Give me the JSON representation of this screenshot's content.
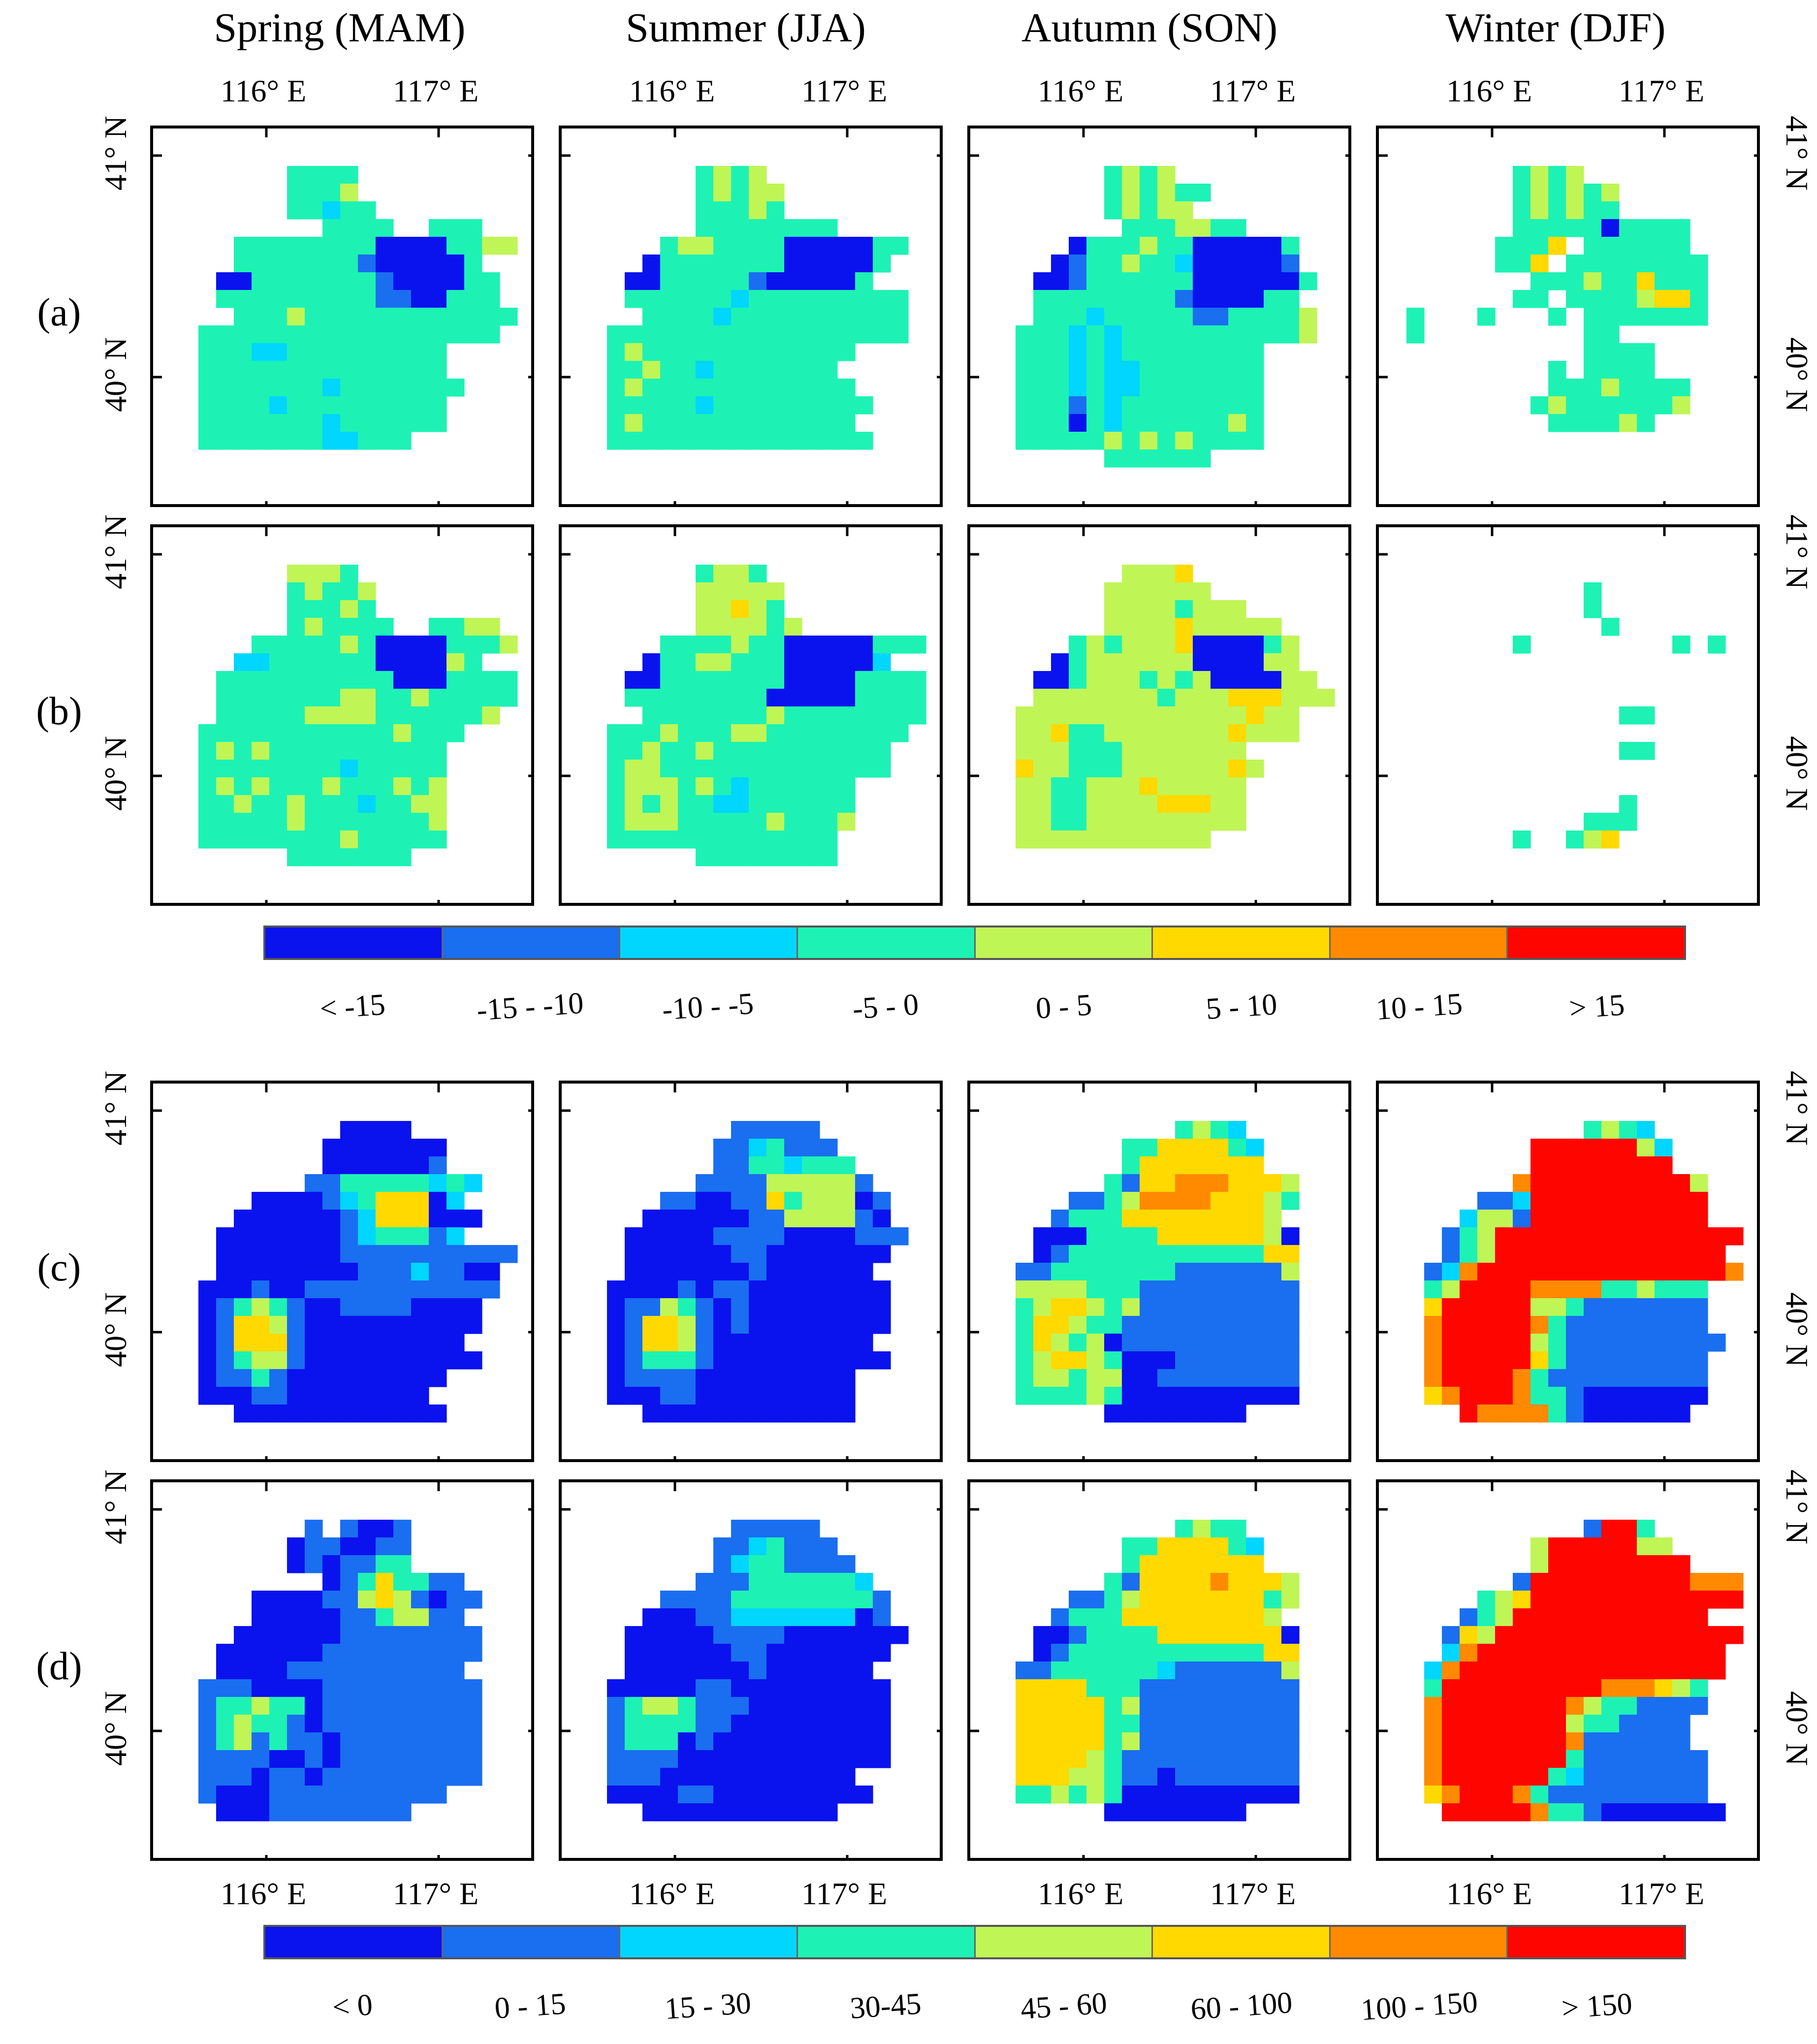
{
  "seasons": [
    "Spring (MAM)",
    "Summer (JJA)",
    "Autumn (SON)",
    "Winter (DJF)"
  ],
  "rows": [
    "(a)",
    "(b)",
    "(c)",
    "(d)"
  ],
  "axes": {
    "lon_ticks": [
      "116° E",
      "117° E"
    ],
    "lat_ticks": [
      "41° N",
      "40° N"
    ]
  },
  "colorbar_top": {
    "colors": [
      "#0a12ee",
      "#1a6ef0",
      "#00d6ff",
      "#1df2b4",
      "#c0f556",
      "#ffd900",
      "#ff8a00",
      "#ff0500"
    ],
    "labels": [
      "< -15",
      "-15 - -10",
      "-10 - -5",
      "-5 - 0",
      "0 - 5",
      "5 - 10",
      "10 - 15",
      "> 15"
    ]
  },
  "colorbar_bottom": {
    "colors": [
      "#0a12ee",
      "#1a6ef0",
      "#00d6ff",
      "#1df2b4",
      "#c0f556",
      "#ffd900",
      "#ff8a00",
      "#ff0500"
    ],
    "labels": [
      "< 0",
      "0 - 15",
      "15 - 30",
      "30-45",
      "45 - 60",
      "60 - 100",
      "100 - 150",
      "> 150"
    ]
  },
  "chart_data": {
    "type": "heatmap",
    "description": "Seasonal gridded maps over the Beijing region; each panel is a 20 x 20 grid; cell values are class indexes into the panel's colorbar (0-7), -1 = no data",
    "grid_size": [
      20,
      20
    ],
    "lon_range": [
      115.35,
      117.5
    ],
    "lat_range": [
      39.45,
      41.15
    ],
    "panels": [
      {
        "row": "(a)",
        "season": "Spring (MAM)",
        "colorbar": "top",
        "palette": [
          "0",
          "1",
          "2",
          "3",
          "4",
          "5",
          "6",
          "7"
        ],
        "rows": [
          "--------------------",
          "-------3333----------",
          "-------3334----------",
          "-------33233---------",
          "---------3333--333---",
          "----3333333300003344-",
          "----33333331000003---",
          "---0033333331000033--",
          "---3333333331100333--",
          "----3334333333333333-",
          "--33333333333333333--",
          "--33322333333333-----",
          "--33333333333333-----",
          "--333333323333333----",
          "--33332333333333-----",
          "--33333332333333-----",
          "--333333322333-------",
          "--------------------",
          "--------------------",
          "--------------------"
        ]
      },
      {
        "row": "(b)",
        "season": "Spring (MAM)",
        "colorbar": "top",
        "palette": [
          "0",
          "1",
          "2",
          "3",
          "4",
          "5",
          "6",
          "7"
        ],
        "rows": [
          "--------------------",
          "-------4443----------",
          "-------34334---------",
          "-------33343---------",
          "-------343333--3344--",
          "-----333334300003334-",
          "----22333333000043---",
          "---33333333330003333-",
          "---33333334433433333-",
          "---3333344443333334--",
          "--333333333334333----",
          "--34343333333333-----",
          "--33333333233333-----",
          "--34343334333434-----",
          "--33433433323344-----",
          "--33333433333334-----",
          "--33333333433333-----",
          "-------3333333-------",
          "--------------------",
          "--------------------"
        ]
      },
      {
        "row": "(c)",
        "season": "Spring (MAM)",
        "colorbar": "bottom",
        "palette": [
          "0",
          "1",
          "2",
          "3",
          "4",
          "5",
          "6",
          "7"
        ],
        "rows": [
          "--------------------",
          "----------0000-------",
          "---------0000000-----",
          "---------0000001-----",
          "--------1133333232---",
          "-----000012355502-----",
          "----00000012555000---",
          "---00000001233312----",
          "---00000001111111111-",
          "---0000000011121100--",
          "--00010011111111111--",
          "--0134310011110000---",
          "--0155410000000000---",
          "--015551000000000----",
          "--0134410000000000---",
          "--01131000000000-----",
          "--0001100000000-----",
          "----000000000000-----",
          "--------------------",
          "--------------------"
        ]
      },
      {
        "row": "(d)",
        "season": "Spring (MAM)",
        "colorbar": "bottom",
        "palette": [
          "0",
          "1",
          "2",
          "3",
          "4",
          "5",
          "6",
          "7"
        ],
        "rows": [
          "--------------------",
          "--------1-1001-------",
          "-------0110011-------",
          "-------0101133-------",
          "---------01353311-----",
          "-----0000114541011---",
          "-----000001134411-----",
          "----00000011111111---",
          "---000000111111111---",
          "---00001111111111----",
          "--1110000111111111---",
          "--1334330111111111---",
          "--1343310111111111---",
          "--1341311011111111---",
          "--1111001011111111---",
          "--1110110111111111---",
          "--10001111111111-----",
          "---00011111111-------",
          "--------------------",
          "--------------------"
        ]
      },
      {
        "row": "(a)",
        "season": "Summer (JJA)",
        "colorbar": "top",
        "palette": [
          "0",
          "1",
          "2",
          "3",
          "4",
          "5",
          "6",
          "7"
        ],
        "rows": [
          "--------------------",
          "-------3434----------",
          "-------34344---------",
          "-------33343---------",
          "-------33333333------",
          "-----34433330000033--",
          "----03333333000003---",
          "---00333331000003----",
          "---3333332333333333--",
          "----333323333333333--",
          "--33333333333333333--",
          "--34333333333333-----",
          "--3343323333333------",
          "--34333333333333-----",
          "--333332333333333----",
          "--34333333333333-----",
          "--333333333333333----",
          "--------------------",
          "--------------------",
          "--------------------"
        ]
      },
      {
        "row": "(b)",
        "season": "Summer (JJA)",
        "colorbar": "top",
        "palette": [
          "0",
          "1",
          "2",
          "3",
          "4",
          "5",
          "6",
          "7"
        ],
        "rows": [
          "--------------------",
          "-------3443----------",
          "-------44444---------",
          "-------44543---------",
          "-------444434--------",
          "-----333343300000333-",
          "----03344333000002---",
          "---00333333300003333-",
          "---33333333000003333-",
          "----3333333433333333-",
          "--33343334433333333--",
          "--3343343333333333---",
          "--3443333333333333---",
          "--34443432333333-----",
          "--34343322333333-----",
          "--34443333343334-----",
          "--3333333333333------",
          "-------33333333------",
          "--------------------",
          "--------------------"
        ]
      },
      {
        "row": "(c)",
        "season": "Summer (JJA)",
        "colorbar": "bottom",
        "palette": [
          "0",
          "1",
          "2",
          "3",
          "4",
          "5",
          "6",
          "7"
        ],
        "rows": [
          "--------------------",
          "---------11111-------",
          "--------1123111------",
          "--------11332333-----",
          "-------1111444441----",
          "-----1100115344401---",
          "----00000011444410---",
          "---0000011110000111--",
          "---000000110000000---",
          "---00000001000000----",
          "--0000101100000000---",
          "--0114310100000000---",
          "--0155410100000000---",
          "--015541000000000----",
          "--0133310000000000---",
          "--01111000000000-----",
          "--00011000000000-----",
          "----000000000000-----",
          "--------------------",
          "--------------------"
        ]
      },
      {
        "row": "(d)",
        "season": "Summer (JJA)",
        "colorbar": "bottom",
        "palette": [
          "0",
          "1",
          "2",
          "3",
          "4",
          "5",
          "6",
          "7"
        ],
        "rows": [
          "--------------------",
          "---------11111-------",
          "--------1123111------",
          "--------12331111-----",
          "-------1113333332----",
          "-----1111333333331---",
          "----00011222222201---",
          "---0000011110000000--",
          "---000000110000000---",
          "---00000001000000----",
          "--0000011000000000---",
          "--1344311100000000---",
          "--1333311000000000---",
          "--1333010000000000---",
          "--1111000000000000---",
          "--11100000000000-----",
          "--000011000000000----",
          "----00000000000------",
          "--------------------",
          "--------------------"
        ]
      },
      {
        "row": "(a)",
        "season": "Autumn (SON)",
        "colorbar": "top",
        "palette": [
          "0",
          "1",
          "2",
          "3",
          "4",
          "5",
          "6",
          "7"
        ],
        "rows": [
          "--------------------",
          "-------3434----------",
          "-------343433--------",
          "-------34344---------",
          "--------3334433------",
          "-----0333433000003-----",
          "----01334332000001---",
          "---0013333330000003--",
          "---333333331000033--",
          "---3332333331133334--",
          "--33323233333333334--",
          "--33323233333333-----",
          "--33323223333333-----",
          "--33323223333333-----",
          "--33313233333333-----",
          "--33303233333343-----",
          "--33333434343333-----",
          "-------333333--------",
          "--------------------",
          "--------------------"
        ]
      },
      {
        "row": "(b)",
        "season": "Autumn (SON)",
        "colorbar": "top",
        "palette": [
          "0",
          "1",
          "2",
          "3",
          "4",
          "5",
          "6",
          "7"
        ],
        "rows": [
          "--------------------",
          "--------4445---------",
          "-------444444--------",
          "-------44443444------",
          "-------4444544444----",
          "-----3434445000034----",
          "----03444444000044---",
          "---0034443434000044--",
          "---44444443444555444-",
          "--4444444444444544---",
          "--4453344444445444---",
          "--4443334444444-----",
          "--54433344444454-----",
          "--4433444544444------",
          "--4433444455544------",
          "--4433444444444------",
          "--44444444444-------",
          "--------------------",
          "--------------------",
          "--------------------"
        ]
      },
      {
        "row": "(c)",
        "season": "Autumn (SON)",
        "colorbar": "bottom",
        "palette": [
          "0",
          "1",
          "2",
          "3",
          "4",
          "5",
          "6",
          "7"
        ],
        "rows": [
          "--------------------",
          "-----------3432------",
          "--------33555532-----",
          "--------35555555-----",
          "-------31556665554---",
          "-----1134666655543-----",
          "----1333555555554----",
          "---000333355555540---",
          "---013333333333355---",
          "--1133333331111114---",
          "--4444333111111111---",
          "--3455434111111111---",
          "--3554331111111111---",
          "--3543401111111111---",
          "--3455430001111111---",
          "--3443440011111111---",
          "--3333430000000000---",
          "-------00000000------",
          "--------------------",
          "--------------------"
        ]
      },
      {
        "row": "(d)",
        "season": "Autumn (SON)",
        "colorbar": "bottom",
        "palette": [
          "0",
          "1",
          "2",
          "3",
          "4",
          "5",
          "6",
          "7"
        ],
        "rows": [
          "--------------------",
          "-----------3433------",
          "--------33555532-----",
          "--------35555555-----",
          "-------31555565554---",
          "-----1134555555534----",
          "----1333555555554----",
          "---001333355555550---",
          "---013333333333355---",
          "--1133333321111114---",
          "--5555333111111111---",
          "--5555534111111111---",
          "--5555533111111111---",
          "--5555534111111111---",
          "--5555431111111111---",
          "--5554431101111111---",
          "--3343430000000000---",
          "-------00000000------",
          "--------------------",
          "--------------------"
        ]
      },
      {
        "row": "(a)",
        "season": "Winter (DJF)",
        "colorbar": "top",
        "palette": [
          "0",
          "1",
          "2",
          "3",
          "4",
          "5",
          "6",
          "7"
        ],
        "rows": [
          "--------------------",
          "-------3434----------",
          "-------343434--------",
          "-------343433--------",
          "-------3333303333----",
          "------3335-333333----",
          "------335-33333333---",
          "--------3334335333---",
          "-------33-33334553---",
          "-3---3---3-3333333---",
          "-3---------33-------",
          "-----------3333------",
          "---------3-3333------",
          "---------33343333----",
          "--------343333334----",
          "---------333343------",
          "---------------------",
          "--------------------",
          "--------------------",
          "--------------------"
        ]
      },
      {
        "row": "(b)",
        "season": "Winter (DJF)",
        "colorbar": "top",
        "palette": [
          "0",
          "1",
          "2",
          "3",
          "4",
          "5",
          "6",
          "7"
        ],
        "rows": [
          "--------------------",
          "--------------------",
          "-----------3---------",
          "-----------3---------",
          "------------3--------",
          "-------3--------3-3--",
          "--------------------",
          "--------------------",
          "----------------------",
          "-------------33------",
          "---------------------",
          "-------------33------",
          "---------------------",
          "--------------------",
          "-------------3------",
          "-----------333------",
          "-------3--345-------",
          "--------------------",
          "--------------------",
          "--------------------"
        ]
      },
      {
        "row": "(c)",
        "season": "Winter (DJF)",
        "colorbar": "bottom",
        "palette": [
          "0",
          "1",
          "2",
          "3",
          "4",
          "5",
          "6",
          "7"
        ],
        "rows": [
          "--------------------",
          "-----------3432------",
          "--------77777742-----",
          "--------77777777-----",
          "-------67777777774---",
          "-----1127777777777----",
          "----24417777777777---",
          "---13477777777777777-",
          "---1347777777777777--",
          "--126777777777777776--",
          "--3477776666334333---",
          "--5777774431111111---",
          "--6777776311111111---",
          "--67777743111111111---",
          "--6777775311111111---",
          "--6777763111111111---",
          "--5677763310000000---",
          "----7666631000000----",
          "--------------------",
          "--------------------"
        ]
      },
      {
        "row": "(d)",
        "season": "Winter (DJF)",
        "colorbar": "bottom",
        "palette": [
          "0",
          "1",
          "2",
          "3",
          "4",
          "5",
          "6",
          "7"
        ],
        "rows": [
          "--------------------",
          "-----------1773------",
          "--------47777744-----",
          "--------477777777----",
          "-------1777777777666--",
          "-----3457777777777776-",
          "----13477777777777---",
          "---15477777777777777-",
          "---2677777777777777--",
          "--26777777777777777--",
          "--3777777777666543---",
          "--6777777764331111---",
          "--677777774331111----",
          "--677777776111111----",
          "--6777777731111111---",
          "--6777777321111111---",
          "--5677763111111111---",
          "---7777763310000000--",
          "--------------------",
          "--------------------"
        ]
      }
    ]
  }
}
